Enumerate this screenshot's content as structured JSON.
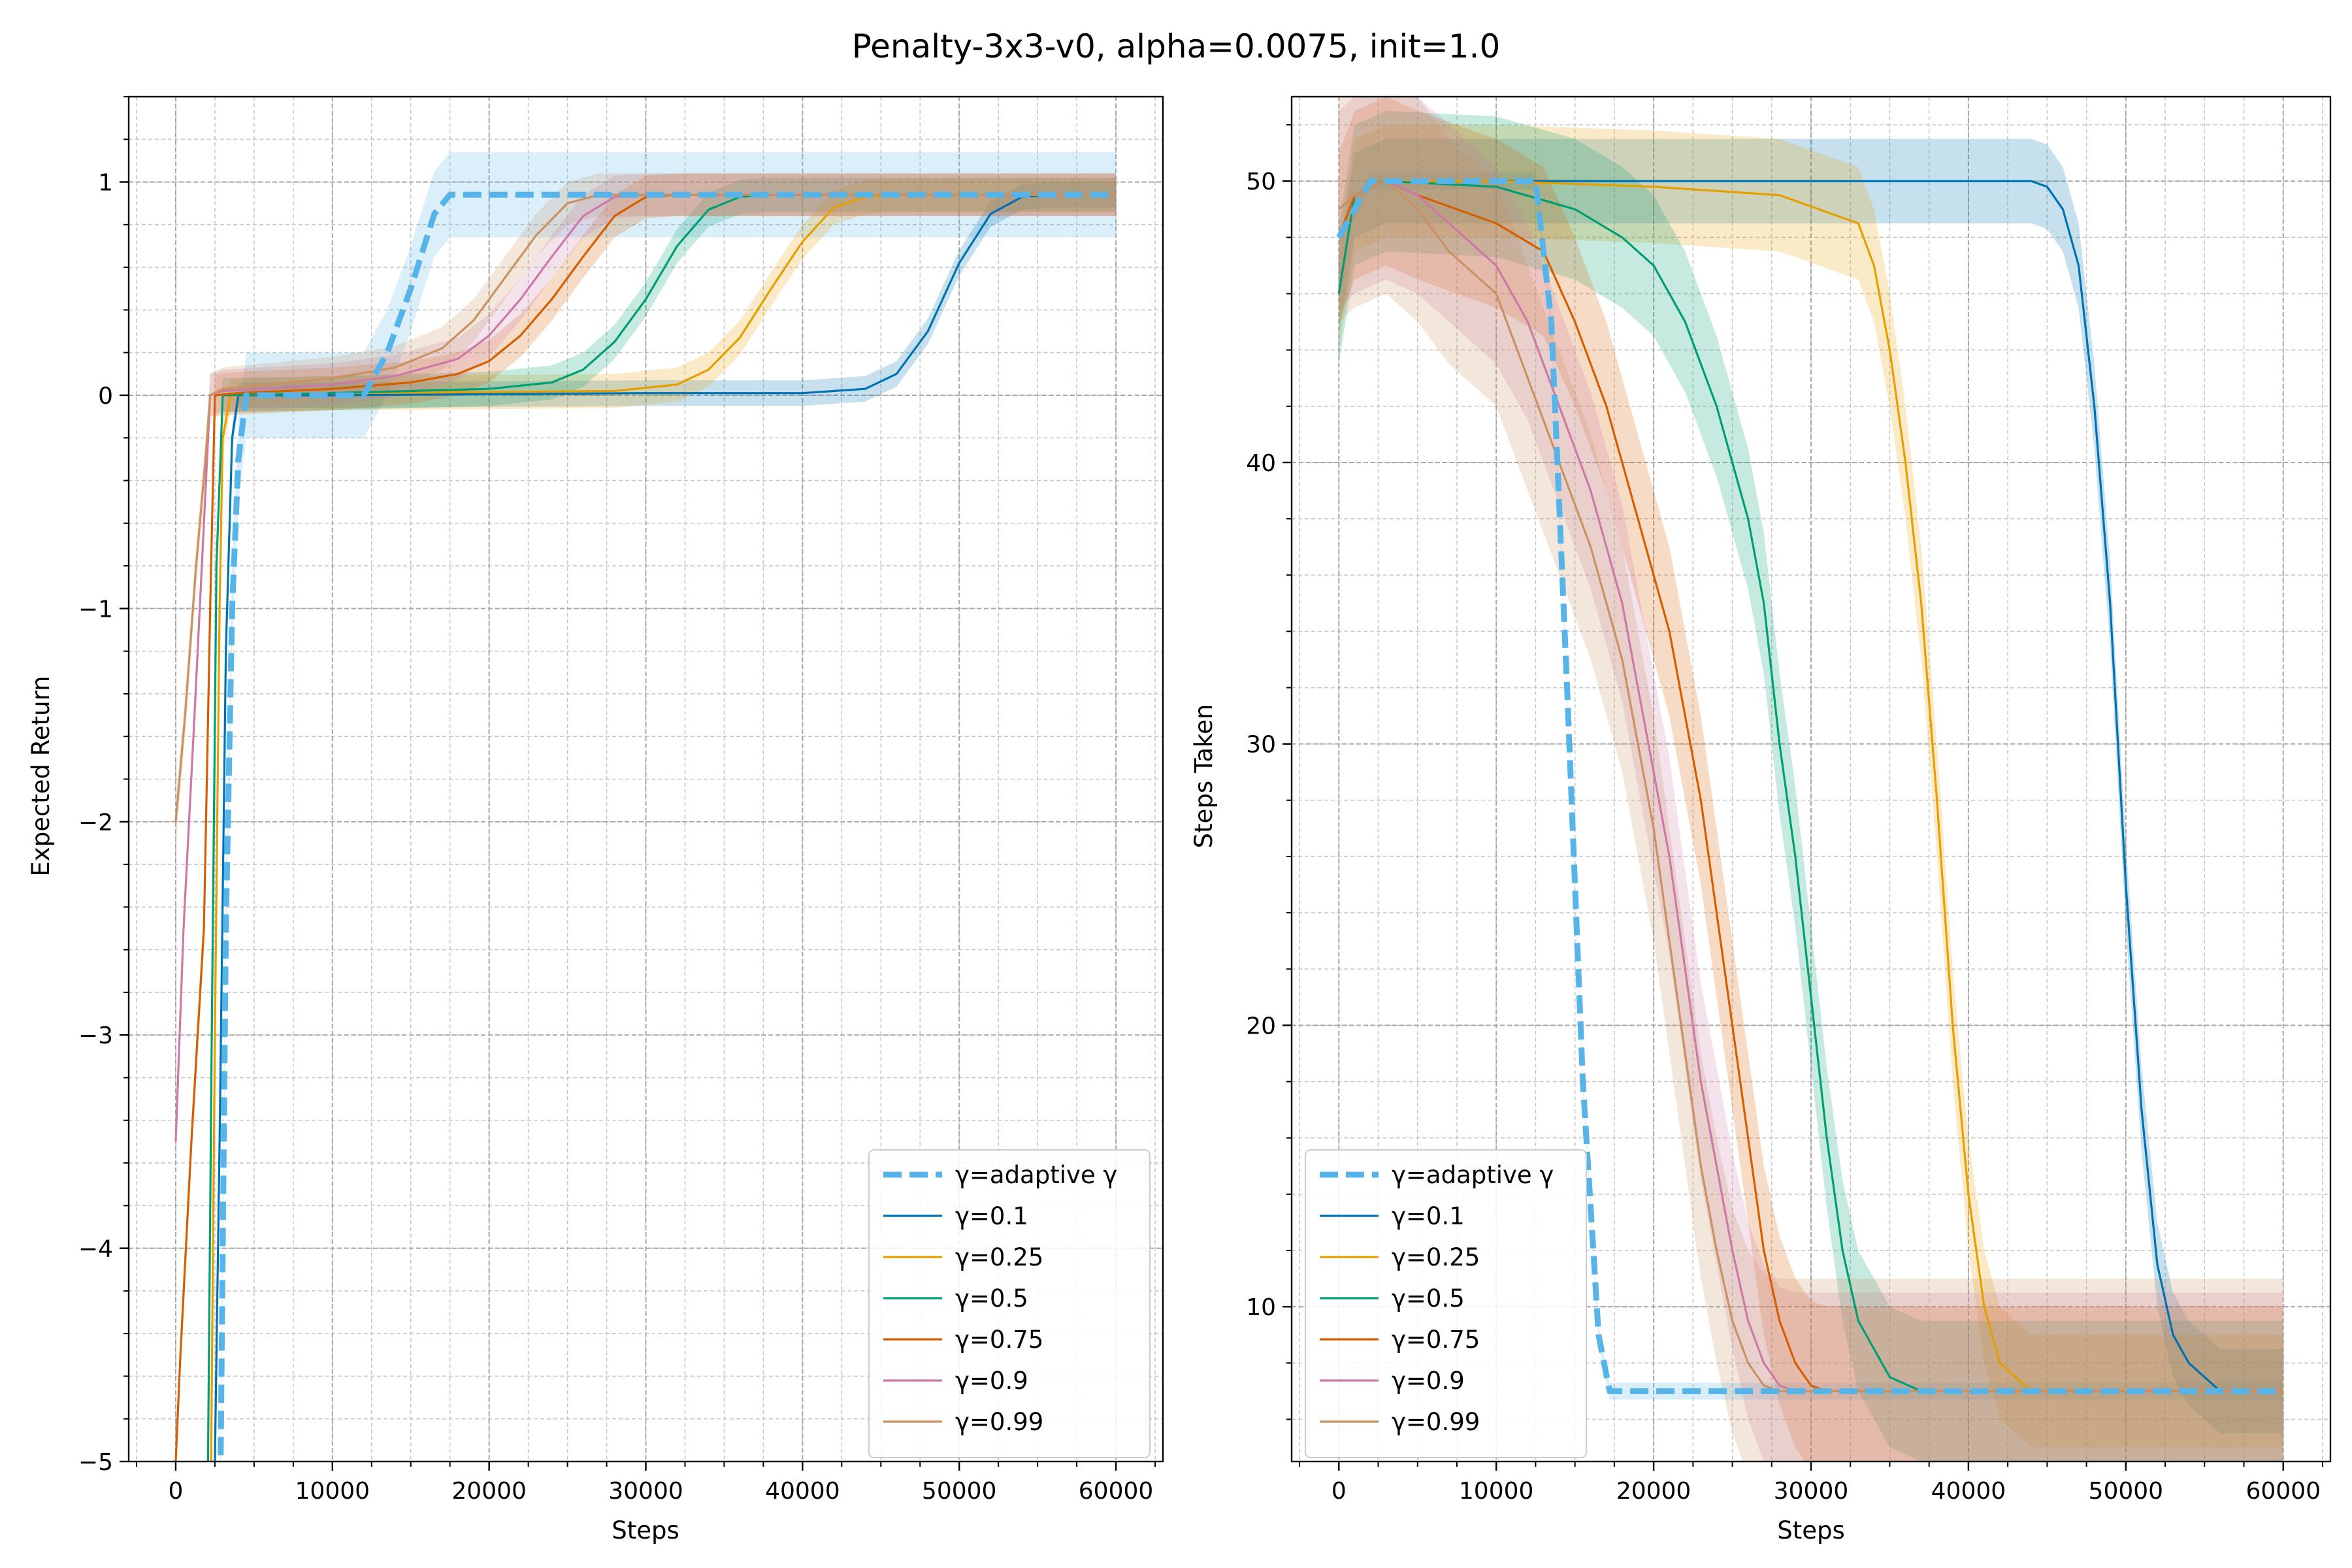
{
  "suptitle": "Penalty-3x3-v0, alpha=0.0075, init=1.0",
  "chart_data": [
    {
      "type": "line",
      "xlabel": "Steps",
      "ylabel": "Expected Return",
      "xlim": [
        -3000,
        63000
      ],
      "ylim": [
        -5,
        1.4
      ],
      "xticks": [
        0,
        10000,
        20000,
        30000,
        40000,
        50000,
        60000
      ],
      "yticks": [
        -5,
        -4,
        -3,
        -2,
        -1,
        0,
        1
      ],
      "ytick_labels": [
        "−5",
        "−4",
        "−3",
        "−2",
        "−1",
        "0",
        "1"
      ],
      "grid": true,
      "legend_position": "lower-right",
      "series": [
        {
          "name": "γ=adaptive γ",
          "color": "#56b4e9",
          "style": "dashed",
          "x": [
            0,
            2800,
            3200,
            3600,
            4000,
            4500,
            5000,
            8000,
            12000,
            13500,
            15000,
            16500,
            17500,
            20000,
            30000,
            40000,
            50000,
            60000
          ],
          "y": [
            -5.5,
            -5.5,
            -2.5,
            -1.0,
            -0.3,
            0,
            0,
            0,
            0,
            0.2,
            0.5,
            0.85,
            0.94,
            0.94,
            0.94,
            0.94,
            0.94,
            0.94
          ],
          "band": 0.2
        },
        {
          "name": "γ=0.1",
          "color": "#0072b2",
          "style": "solid",
          "x": [
            0,
            2400,
            2800,
            3200,
            3600,
            4000,
            5000,
            10000,
            20000,
            30000,
            40000,
            44000,
            46000,
            48000,
            50000,
            52000,
            54000,
            56000,
            60000
          ],
          "y": [
            -5.5,
            -5.5,
            -3.5,
            -1.2,
            -0.2,
            0,
            0,
            0,
            0.005,
            0.01,
            0.01,
            0.03,
            0.1,
            0.3,
            0.62,
            0.85,
            0.93,
            0.94,
            0.94
          ],
          "band": 0.06
        },
        {
          "name": "γ=0.25",
          "color": "#e69f00",
          "style": "solid",
          "x": [
            0,
            2200,
            2500,
            2800,
            3000,
            3500,
            10000,
            20000,
            28000,
            32000,
            34000,
            36000,
            38000,
            40000,
            42000,
            44000,
            46000,
            60000
          ],
          "y": [
            -5.5,
            -5.5,
            -3.0,
            -1.0,
            -0.2,
            0,
            0.01,
            0.015,
            0.02,
            0.05,
            0.12,
            0.27,
            0.5,
            0.72,
            0.88,
            0.93,
            0.94,
            0.94
          ],
          "band": 0.08
        },
        {
          "name": "γ=0.5",
          "color": "#009e73",
          "style": "solid",
          "x": [
            0,
            2000,
            2300,
            2600,
            3000,
            10000,
            20000,
            24000,
            26000,
            28000,
            30000,
            32000,
            34000,
            36000,
            38000,
            60000
          ],
          "y": [
            -5.5,
            -5.5,
            -3.0,
            -0.8,
            0,
            0.01,
            0.03,
            0.06,
            0.12,
            0.25,
            0.45,
            0.7,
            0.87,
            0.93,
            0.94,
            0.94
          ],
          "band": 0.08
        },
        {
          "name": "γ=0.75",
          "color": "#d55e00",
          "style": "solid",
          "x": [
            0,
            300,
            1000,
            1800,
            2200,
            2500,
            4000,
            10000,
            15000,
            18000,
            20000,
            22000,
            24000,
            26000,
            28000,
            30000,
            32000,
            60000
          ],
          "y": [
            -5.0,
            -4.5,
            -3.5,
            -2.5,
            -1.0,
            0,
            0.01,
            0.03,
            0.06,
            0.1,
            0.16,
            0.28,
            0.45,
            0.65,
            0.84,
            0.93,
            0.94,
            0.94
          ],
          "band": 0.1
        },
        {
          "name": "γ=0.9",
          "color": "#cc79a7",
          "style": "solid",
          "x": [
            0,
            500,
            1200,
            1800,
            2200,
            3000,
            10000,
            14000,
            18000,
            20000,
            22000,
            24000,
            26000,
            28000,
            30000,
            60000
          ],
          "y": [
            -3.5,
            -2.5,
            -1.5,
            -0.6,
            0,
            0.02,
            0.05,
            0.09,
            0.17,
            0.28,
            0.45,
            0.65,
            0.84,
            0.93,
            0.94,
            0.94
          ],
          "band": 0.1
        },
        {
          "name": "γ=0.99",
          "color": "#ca9161",
          "style": "solid",
          "x": [
            0,
            600,
            1300,
            1900,
            2200,
            3000,
            10000,
            14000,
            17000,
            19000,
            21000,
            23000,
            25000,
            27000,
            29000,
            60000
          ],
          "y": [
            -2.0,
            -1.5,
            -0.8,
            -0.3,
            0,
            0.03,
            0.08,
            0.13,
            0.22,
            0.35,
            0.55,
            0.75,
            0.9,
            0.94,
            0.94,
            0.94
          ],
          "band": 0.1
        }
      ]
    },
    {
      "type": "line",
      "xlabel": "Steps",
      "ylabel": "Steps Taken",
      "xlim": [
        -3000,
        63000
      ],
      "ylim": [
        4.5,
        53
      ],
      "xticks": [
        0,
        10000,
        20000,
        30000,
        40000,
        50000,
        60000
      ],
      "yticks": [
        10,
        20,
        30,
        40,
        50
      ],
      "ytick_labels": [
        "10",
        "20",
        "30",
        "40",
        "50"
      ],
      "grid": true,
      "legend_position": "lower-left",
      "series": [
        {
          "name": "γ=adaptive γ",
          "color": "#56b4e9",
          "style": "dashed",
          "x": [
            0,
            1000,
            2000,
            3000,
            5000,
            10000,
            12500,
            13500,
            14500,
            15500,
            16500,
            17200,
            18000,
            20000,
            40000,
            60000
          ],
          "y": [
            48,
            49,
            50,
            50,
            50,
            50,
            50,
            45,
            32,
            18,
            9,
            7,
            7,
            7,
            7,
            7
          ],
          "band": 0.3
        },
        {
          "name": "γ=0.1",
          "color": "#0072b2",
          "style": "solid",
          "x": [
            0,
            1000,
            3000,
            10000,
            30000,
            40000,
            43000,
            44000,
            45000,
            46000,
            47000,
            48000,
            49000,
            50000,
            51000,
            52000,
            53000,
            54000,
            56000,
            60000
          ],
          "y": [
            46,
            49.5,
            50,
            50,
            50,
            50,
            50,
            50,
            49.8,
            49,
            47,
            42,
            35,
            25,
            17,
            11.5,
            9,
            8,
            7,
            7
          ],
          "band": 1.5
        },
        {
          "name": "γ=0.25",
          "color": "#e69f00",
          "style": "solid",
          "x": [
            0,
            1000,
            3000,
            10000,
            20000,
            28000,
            33000,
            34000,
            35000,
            36000,
            37000,
            38000,
            39000,
            40000,
            41000,
            42000,
            44000,
            60000
          ],
          "y": [
            46,
            49.5,
            50,
            50,
            49.8,
            49.5,
            48.5,
            47,
            44,
            40,
            35,
            28,
            20,
            14,
            10,
            8,
            7,
            7
          ],
          "band": 2.0
        },
        {
          "name": "γ=0.5",
          "color": "#009e73",
          "style": "solid",
          "x": [
            0,
            1000,
            3000,
            10000,
            15000,
            18000,
            20000,
            22000,
            24000,
            26000,
            27000,
            28000,
            29000,
            30000,
            31000,
            32000,
            33000,
            35000,
            37000,
            60000
          ],
          "y": [
            46,
            49.5,
            50,
            49.8,
            49,
            48,
            47,
            45,
            42,
            38,
            35,
            30,
            26,
            21,
            16,
            12,
            9.5,
            7.5,
            7,
            7
          ],
          "band": 2.5
        },
        {
          "name": "γ=0.75",
          "color": "#d55e00",
          "style": "solid",
          "x": [
            0,
            1000,
            3000,
            5000,
            10000,
            13000,
            15000,
            17000,
            19000,
            21000,
            23000,
            24000,
            25000,
            26000,
            27000,
            28000,
            29000,
            30000,
            31000,
            60000
          ],
          "y": [
            48,
            49.5,
            50,
            49.5,
            48.5,
            47.5,
            45,
            42,
            38,
            34,
            28,
            24,
            20,
            16,
            12,
            9.5,
            8,
            7.2,
            7,
            7
          ],
          "band": 3.0
        },
        {
          "name": "γ=0.9",
          "color": "#cc79a7",
          "style": "solid",
          "x": [
            0,
            1000,
            3000,
            5000,
            8000,
            10000,
            12000,
            14000,
            16000,
            18000,
            20000,
            21000,
            22000,
            23000,
            24000,
            25000,
            26000,
            27000,
            28000,
            29000,
            60000
          ],
          "y": [
            49,
            49.5,
            50,
            49.5,
            48,
            47,
            45,
            42,
            39,
            35,
            29,
            26,
            22,
            18,
            15,
            12,
            9.5,
            8,
            7.2,
            7,
            7
          ],
          "band": 3.5
        },
        {
          "name": "γ=0.99",
          "color": "#ca9161",
          "style": "solid",
          "x": [
            0,
            1000,
            3000,
            5000,
            7000,
            10000,
            12000,
            14000,
            16000,
            18000,
            19000,
            20000,
            21000,
            22000,
            23000,
            24000,
            25000,
            26000,
            27000,
            28000,
            60000
          ],
          "y": [
            49,
            49.5,
            50,
            49,
            47.5,
            46,
            43,
            40,
            37,
            33,
            30,
            27,
            23,
            19,
            15,
            12,
            9.5,
            8,
            7.2,
            7,
            7
          ],
          "band": 4.0
        }
      ]
    }
  ]
}
